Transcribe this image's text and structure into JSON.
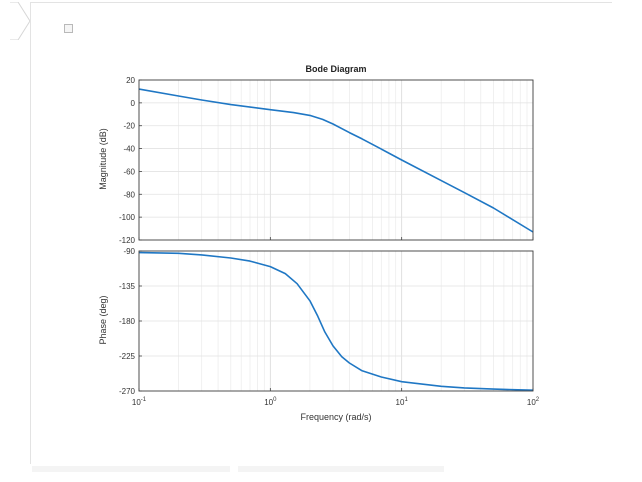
{
  "chart_data": {
    "type": "line",
    "title": "Bode Diagram",
    "xlabel": "Frequency  (rad/s)",
    "x_scale": "log",
    "xlim": [
      0.1,
      100
    ],
    "x_ticks": [
      {
        "base": "10",
        "exp": "-1"
      },
      {
        "base": "10",
        "exp": "0"
      },
      {
        "base": "10",
        "exp": "1"
      },
      {
        "base": "10",
        "exp": "2"
      }
    ],
    "grid": true,
    "line_color": "#1f77c4",
    "panels": [
      {
        "ylabel": "Magnitude (dB)",
        "ylim": [
          -120,
          20
        ],
        "yticks": [
          20,
          0,
          -20,
          -40,
          -60,
          -80,
          -100,
          -120
        ],
        "series": [
          {
            "x": [
              0.1,
              0.2,
              0.3,
              0.5,
              1,
              1.5,
              2,
              2.5,
              3,
              4,
              5,
              7,
              10,
              20,
              30,
              50,
              100
            ],
            "y": [
              12,
              6,
              2.5,
              -1.5,
              -6,
              -8.5,
              -11,
              -14.5,
              -18.5,
              -26,
              -31.5,
              -40.5,
              -50,
              -68,
              -78.5,
              -92,
              -113
            ]
          }
        ]
      },
      {
        "ylabel": "Phase (deg)",
        "ylim": [
          -270,
          -90
        ],
        "yticks": [
          -90,
          -135,
          -180,
          -225,
          -270
        ],
        "series": [
          {
            "x": [
              0.1,
              0.2,
              0.3,
              0.5,
              0.7,
              1,
              1.3,
              1.6,
              2,
              2.3,
              2.6,
              3,
              3.5,
              4,
              5,
              7,
              10,
              20,
              30,
              50,
              100
            ],
            "y": [
              -92,
              -93,
              -95,
              -99,
              -103,
              -110,
              -119,
              -132,
              -154,
              -174,
              -194,
              -212,
              -226,
              -234,
              -244,
              -252,
              -258,
              -264,
              -266,
              -267.5,
              -269
            ]
          }
        ]
      }
    ]
  }
}
